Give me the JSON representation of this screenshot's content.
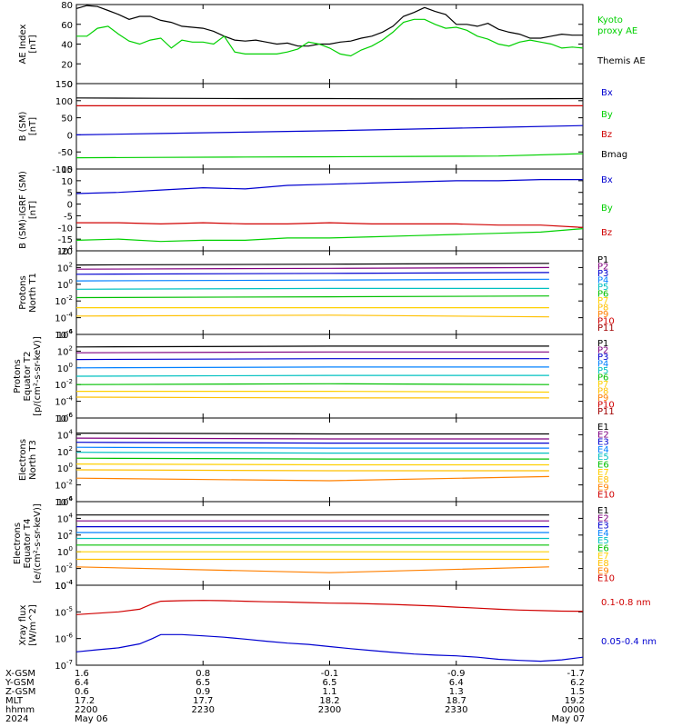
{
  "colors": {
    "black": "#000000",
    "green": "#00d000",
    "blue": "#0000d0",
    "red": "#d00000",
    "series": [
      "#000000",
      "#800080",
      "#0000d0",
      "#0080ff",
      "#00c0c0",
      "#00c000",
      "#ffd000",
      "#ffc000",
      "#ff8000",
      "#d00000",
      "#a00000"
    ]
  },
  "chart_data": [
    {
      "type": "line",
      "ylabel": [
        "AE Index",
        "[nT]"
      ],
      "ylim": [
        0,
        80
      ],
      "yticks": [
        "0",
        "20",
        "40",
        "60",
        "80"
      ],
      "ytick_values": [
        0,
        20,
        40,
        60,
        80
      ],
      "x": [
        0,
        2.5,
        5,
        7.5,
        10,
        12.5,
        15,
        17.5,
        20,
        22.5,
        25,
        27.5,
        30,
        32.5,
        35,
        37.5,
        40,
        42.5,
        45,
        47.5,
        50,
        52.5,
        55,
        57.5,
        60,
        62.5,
        65,
        67.5,
        70,
        72.5,
        75,
        77.5,
        80,
        82.5,
        85,
        87.5,
        90,
        92.5,
        95,
        97.5,
        100,
        102.5,
        105,
        107.5,
        110,
        112.5,
        115,
        117.5,
        120
      ],
      "series": [
        {
          "name": "Themis AE",
          "color": "#000000",
          "values": [
            76,
            79,
            78,
            74,
            70,
            65,
            68,
            68,
            64,
            62,
            58,
            57,
            56,
            53,
            48,
            44,
            43,
            44,
            42,
            40,
            41,
            38,
            38,
            40,
            40,
            42,
            43,
            46,
            48,
            52,
            58,
            68,
            72,
            77,
            73,
            70,
            60,
            60,
            58,
            61,
            55,
            52,
            50,
            46,
            46,
            48,
            50,
            49,
            49
          ]
        },
        {
          "name": "Kyoto proxy AE",
          "color": "#00d000",
          "values": [
            48,
            48,
            56,
            58,
            50,
            43,
            40,
            44,
            46,
            36,
            44,
            42,
            42,
            40,
            48,
            32,
            30,
            30,
            30,
            30,
            32,
            35,
            42,
            40,
            36,
            30,
            28,
            34,
            38,
            44,
            52,
            62,
            65,
            65,
            60,
            56,
            57,
            54,
            48,
            45,
            40,
            38,
            42,
            44,
            42,
            40,
            36,
            37,
            36
          ]
        }
      ]
    },
    {
      "type": "line",
      "ylabel": [
        "B (SM)",
        "[nT]"
      ],
      "ylim": [
        -100,
        150
      ],
      "yticks": [
        "-100",
        "-50",
        "0",
        "50",
        "100",
        "150"
      ],
      "ytick_values": [
        -100,
        -50,
        0,
        50,
        100,
        150
      ],
      "x": [
        0,
        20,
        40,
        60,
        80,
        100,
        120
      ],
      "series": [
        {
          "name": "Bx",
          "color": "#0000d0",
          "values": [
            0,
            4,
            8,
            12,
            17,
            22,
            27
          ]
        },
        {
          "name": "By",
          "color": "#00d000",
          "values": [
            -67,
            -66,
            -65,
            -64,
            -63,
            -62,
            -55
          ]
        },
        {
          "name": "Bz",
          "color": "#d00000",
          "values": [
            85,
            85,
            85,
            85,
            85,
            85,
            85
          ]
        },
        {
          "name": "Bmag",
          "color": "#000000",
          "values": [
            108,
            107,
            106,
            106,
            105,
            105,
            106
          ]
        }
      ]
    },
    {
      "type": "line",
      "ylabel": [
        "B (SM)-IGRF (SM)",
        "[nT]"
      ],
      "ylim": [
        -20,
        15
      ],
      "yticks": [
        "-20",
        "-15",
        "-10",
        "-5",
        "0",
        "5",
        "10",
        "15"
      ],
      "ytick_values": [
        -20,
        -15,
        -10,
        -5,
        0,
        5,
        10,
        15
      ],
      "x": [
        0,
        10,
        20,
        30,
        40,
        50,
        60,
        70,
        80,
        90,
        100,
        110,
        120
      ],
      "series": [
        {
          "name": "Bx",
          "color": "#0000d0",
          "values": [
            4.5,
            5,
            6,
            7,
            6.5,
            8,
            8.5,
            9,
            9.5,
            10,
            10,
            10.5,
            10.5
          ]
        },
        {
          "name": "By",
          "color": "#00d000",
          "values": [
            -15.5,
            -15,
            -16,
            -15.5,
            -15.5,
            -14.5,
            -14.5,
            -14,
            -13.5,
            -13,
            -12.5,
            -12,
            -10.5
          ]
        },
        {
          "name": "Bz",
          "color": "#d00000",
          "values": [
            -8,
            -8,
            -8.5,
            -8,
            -8.5,
            -8.5,
            -8,
            -8.5,
            -8.5,
            -8.5,
            -9,
            -9,
            -10
          ]
        }
      ]
    },
    {
      "type": "line",
      "log": true,
      "ylabel": [
        "Protons",
        "North T1"
      ],
      "ylim": [
        -6,
        4
      ],
      "ytick_exps": [
        "-6",
        "-4",
        "-2",
        "0",
        "2",
        "4"
      ],
      "ytick_values": [
        -6,
        -4,
        -2,
        0,
        2,
        4
      ],
      "x": [
        0,
        60,
        112
      ],
      "series": [
        {
          "name": "P1",
          "values": [
            2.3,
            2.4,
            2.5
          ]
        },
        {
          "name": "P2",
          "values": [
            1.8,
            1.9,
            2.0
          ]
        },
        {
          "name": "P3",
          "values": [
            1.2,
            1.3,
            1.4
          ]
        },
        {
          "name": "P4",
          "values": [
            0.4,
            0.5,
            0.6
          ]
        },
        {
          "name": "P5",
          "values": [
            -0.6,
            -0.5,
            -0.5
          ]
        },
        {
          "name": "P6",
          "values": [
            -1.6,
            -1.5,
            -1.4
          ]
        },
        {
          "name": "P7",
          "values": [
            -2.8,
            -2.8,
            -2.8
          ]
        },
        {
          "name": "P8",
          "values": [
            -3.8,
            -3.7,
            -3.9
          ]
        },
        {
          "name": "P9",
          "values": [
            null,
            null,
            null
          ]
        },
        {
          "name": "P10",
          "values": [
            null,
            null,
            null
          ]
        },
        {
          "name": "P11",
          "values": [
            null,
            null,
            null
          ]
        }
      ]
    },
    {
      "type": "line",
      "log": true,
      "ylabel": [
        "Protons",
        "Equator T2",
        "[p/(cm²-s-sr-keV)]"
      ],
      "ylim": [
        -6,
        4
      ],
      "ytick_exps": [
        "-6",
        "-4",
        "-2",
        "0",
        "2",
        "4"
      ],
      "ytick_values": [
        -6,
        -4,
        -2,
        0,
        2,
        4
      ],
      "x": [
        0,
        60,
        112
      ],
      "series": [
        {
          "name": "P1",
          "values": [
            2.5,
            2.6,
            2.6
          ]
        },
        {
          "name": "P2",
          "values": [
            1.8,
            1.9,
            1.9
          ]
        },
        {
          "name": "P3",
          "values": [
            1.0,
            1.1,
            1.1
          ]
        },
        {
          "name": "P4",
          "values": [
            0.0,
            0.1,
            0.1
          ]
        },
        {
          "name": "P5",
          "values": [
            -1.0,
            -0.9,
            -0.9
          ]
        },
        {
          "name": "P6",
          "values": [
            -2.0,
            -1.9,
            -2.0
          ]
        },
        {
          "name": "P7",
          "values": [
            -2.8,
            -2.8,
            -2.9
          ]
        },
        {
          "name": "P8",
          "values": [
            -3.5,
            -3.6,
            -3.6
          ]
        },
        {
          "name": "P9",
          "values": [
            null,
            null,
            null
          ]
        },
        {
          "name": "P10",
          "values": [
            null,
            null,
            null
          ]
        },
        {
          "name": "P11",
          "values": [
            null,
            null,
            null
          ]
        }
      ]
    },
    {
      "type": "line",
      "log": true,
      "ylabel": [
        "Electrons",
        "North T3"
      ],
      "ylim": [
        -4,
        6
      ],
      "ytick_exps": [
        "-4",
        "-2",
        "0",
        "2",
        "4",
        "6"
      ],
      "ytick_values": [
        -4,
        -2,
        0,
        2,
        4,
        6
      ],
      "x": [
        0,
        60,
        112
      ],
      "series": [
        {
          "name": "E1",
          "values": [
            4.2,
            4.1,
            4.1
          ]
        },
        {
          "name": "E2",
          "values": [
            3.6,
            3.5,
            3.5
          ]
        },
        {
          "name": "E3",
          "values": [
            3.1,
            3.0,
            3.0
          ]
        },
        {
          "name": "E4",
          "values": [
            2.5,
            2.4,
            2.4
          ]
        },
        {
          "name": "E5",
          "values": [
            1.9,
            1.8,
            1.8
          ]
        },
        {
          "name": "E6",
          "values": [
            1.2,
            1.1,
            1.1
          ]
        },
        {
          "name": "E7",
          "values": [
            0.5,
            0.4,
            0.4
          ]
        },
        {
          "name": "E8",
          "values": [
            -0.2,
            -0.3,
            -0.3
          ]
        },
        {
          "name": "E9",
          "values": [
            -1.2,
            -1.5,
            -1.0
          ]
        },
        {
          "name": "E10",
          "values": [
            null,
            null,
            null
          ]
        }
      ]
    },
    {
      "type": "line",
      "log": true,
      "ylabel": [
        "Electrons",
        "Equator T4",
        "[e/(cm²-s-sr-keV)]"
      ],
      "ylim": [
        -4,
        6
      ],
      "ytick_exps": [
        "-4",
        "-2",
        "0",
        "2",
        "4",
        "6"
      ],
      "ytick_values": [
        -4,
        -2,
        0,
        2,
        4,
        6
      ],
      "x": [
        0,
        60,
        112
      ],
      "series": [
        {
          "name": "E1",
          "values": [
            4.4,
            4.4,
            4.4
          ]
        },
        {
          "name": "E2",
          "values": [
            3.7,
            3.7,
            3.7
          ]
        },
        {
          "name": "E3",
          "values": [
            3.0,
            3.0,
            3.0
          ]
        },
        {
          "name": "E4",
          "values": [
            2.3,
            2.3,
            2.3
          ]
        },
        {
          "name": "E5",
          "values": [
            1.6,
            1.6,
            1.6
          ]
        },
        {
          "name": "E6",
          "values": [
            0.8,
            0.8,
            0.8
          ]
        },
        {
          "name": "E7",
          "values": [
            0.0,
            0.0,
            0.0
          ]
        },
        {
          "name": "E8",
          "values": [
            -0.9,
            -0.9,
            -0.9
          ]
        },
        {
          "name": "E9",
          "values": [
            -1.8,
            -2.5,
            -1.8
          ]
        },
        {
          "name": "E10",
          "values": [
            null,
            null,
            null
          ]
        }
      ]
    },
    {
      "type": "line",
      "log": true,
      "ylabel": [
        "Xray flux",
        "[W/m^2]"
      ],
      "ylim": [
        -7,
        -4
      ],
      "ytick_exps": [
        "-7",
        "-6",
        "-5",
        "-4"
      ],
      "ytick_values": [
        -7,
        -6,
        -5,
        -4
      ],
      "x": [
        0,
        5,
        10,
        15,
        18,
        20,
        25,
        30,
        35,
        40,
        45,
        50,
        55,
        60,
        65,
        70,
        75,
        80,
        85,
        90,
        95,
        100,
        105,
        110,
        115,
        120
      ],
      "series": [
        {
          "name": "0.1-0.8 nm",
          "color": "#d00000",
          "values": [
            -5.1,
            -5.05,
            -5.0,
            -4.9,
            -4.7,
            -4.6,
            -4.58,
            -4.57,
            -4.58,
            -4.6,
            -4.62,
            -4.63,
            -4.65,
            -4.67,
            -4.68,
            -4.7,
            -4.72,
            -4.75,
            -4.78,
            -4.82,
            -4.86,
            -4.9,
            -4.93,
            -4.95,
            -4.97,
            -4.98
          ]
        },
        {
          "name": "0.05-0.4 nm",
          "color": "#0000d0",
          "values": [
            -6.5,
            -6.42,
            -6.35,
            -6.2,
            -6.0,
            -5.85,
            -5.85,
            -5.9,
            -5.95,
            -6.02,
            -6.1,
            -6.17,
            -6.22,
            -6.3,
            -6.38,
            -6.45,
            -6.52,
            -6.58,
            -6.62,
            -6.65,
            -6.7,
            -6.78,
            -6.82,
            -6.85,
            -6.8,
            -6.7
          ]
        }
      ]
    }
  ],
  "legends": [
    [
      {
        "text": "Kyoto",
        "color": "#00d000"
      },
      {
        "text": "proxy AE",
        "color": "#00d000"
      },
      {
        "text": "Themis AE",
        "color": "#000000"
      }
    ],
    [
      {
        "text": "Bx",
        "color": "#0000d0"
      },
      {
        "text": "By",
        "color": "#00d000"
      },
      {
        "text": "Bz",
        "color": "#d00000"
      },
      {
        "text": "Bmag",
        "color": "#000000"
      }
    ],
    [
      {
        "text": "Bx",
        "color": "#0000d0"
      },
      {
        "text": "By",
        "color": "#00d000"
      },
      {
        "text": "Bz",
        "color": "#d00000"
      }
    ],
    [
      {
        "text": "P1"
      },
      {
        "text": "P2"
      },
      {
        "text": "P3"
      },
      {
        "text": "P4"
      },
      {
        "text": "P5"
      },
      {
        "text": "P6"
      },
      {
        "text": "P7"
      },
      {
        "text": "P8"
      },
      {
        "text": "P9"
      },
      {
        "text": "P10"
      },
      {
        "text": "P11"
      }
    ],
    [
      {
        "text": "P1"
      },
      {
        "text": "P2"
      },
      {
        "text": "P3"
      },
      {
        "text": "P4"
      },
      {
        "text": "P5"
      },
      {
        "text": "P6"
      },
      {
        "text": "P7"
      },
      {
        "text": "P8"
      },
      {
        "text": "P9"
      },
      {
        "text": "P10"
      },
      {
        "text": "P11"
      }
    ],
    [
      {
        "text": "E1"
      },
      {
        "text": "E2"
      },
      {
        "text": "E3"
      },
      {
        "text": "E4"
      },
      {
        "text": "E5"
      },
      {
        "text": "E6"
      },
      {
        "text": "E7"
      },
      {
        "text": "E8"
      },
      {
        "text": "E9"
      },
      {
        "text": "E10"
      }
    ],
    [
      {
        "text": "E1"
      },
      {
        "text": "E2"
      },
      {
        "text": "E3"
      },
      {
        "text": "E4"
      },
      {
        "text": "E5"
      },
      {
        "text": "E6"
      },
      {
        "text": "E7"
      },
      {
        "text": "E8"
      },
      {
        "text": "E9"
      },
      {
        "text": "E10"
      }
    ],
    [
      {
        "text": "0.1-0.8 nm",
        "color": "#d00000"
      },
      {
        "text": "0.05-0.4 nm",
        "color": "#0000d0"
      }
    ]
  ],
  "x_axis": {
    "row_labels": [
      "X-GSM",
      "Y-GSM",
      "Z-GSM",
      "MLT",
      "hhmm",
      "2024"
    ],
    "columns": [
      [
        "1.6",
        "6.4",
        "0.6",
        "17.2",
        "2200",
        "May 06"
      ],
      [
        "0.8",
        "6.5",
        "0.9",
        "17.7",
        "2230",
        ""
      ],
      [
        "-0.1",
        "6.5",
        "1.1",
        "18.2",
        "2300",
        ""
      ],
      [
        "-0.9",
        "6.4",
        "1.3",
        "18.7",
        "2330",
        ""
      ],
      [
        "-1.7",
        "6.2",
        "1.5",
        "19.2",
        "0000",
        "May 07"
      ]
    ],
    "tick_minutes": [
      0,
      30,
      60,
      90,
      120
    ]
  }
}
